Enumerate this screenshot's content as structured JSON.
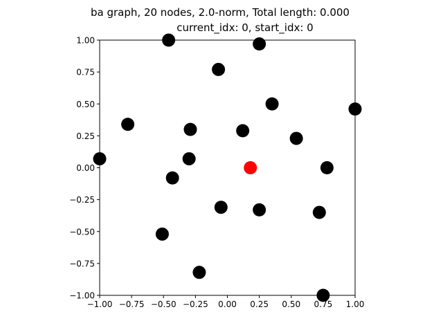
{
  "chart_data": {
    "type": "scatter",
    "title_line1": "ba graph, 20 nodes, 2.0-norm, Total length: 0.000",
    "title_line2": "current_idx: 0, start_idx: 0",
    "xlabel": "",
    "ylabel": "",
    "xlim": [
      -1.0,
      1.0
    ],
    "ylim": [
      -1.0,
      1.0
    ],
    "x_ticks": [
      -1.0,
      -0.75,
      -0.5,
      -0.25,
      0.0,
      0.25,
      0.5,
      0.75,
      1.0
    ],
    "y_ticks": [
      -1.0,
      -0.75,
      -0.5,
      -0.25,
      0.0,
      0.25,
      0.5,
      0.75,
      1.0
    ],
    "x_tick_labels": [
      "−1.00",
      "−0.75",
      "−0.50",
      "−0.25",
      "0.00",
      "0.25",
      "0.50",
      "0.75",
      "1.00"
    ],
    "y_tick_labels": [
      "−1.00",
      "−0.75",
      "−0.50",
      "−0.25",
      "0.00",
      "0.25",
      "0.50",
      "0.75",
      "1.00"
    ],
    "grid": false,
    "node_color": "#000000",
    "current_node_color": "#ff0000",
    "current_node": {
      "x": 0.18,
      "y": 0.0
    },
    "nodes": [
      {
        "x": -0.46,
        "y": 1.0
      },
      {
        "x": 0.25,
        "y": 0.97
      },
      {
        "x": -0.07,
        "y": 0.77
      },
      {
        "x": 0.35,
        "y": 0.5
      },
      {
        "x": 1.0,
        "y": 0.46
      },
      {
        "x": -0.78,
        "y": 0.34
      },
      {
        "x": -0.29,
        "y": 0.3
      },
      {
        "x": 0.12,
        "y": 0.29
      },
      {
        "x": 0.54,
        "y": 0.23
      },
      {
        "x": -1.0,
        "y": 0.07
      },
      {
        "x": -0.3,
        "y": 0.07
      },
      {
        "x": 0.78,
        "y": 0.0
      },
      {
        "x": -0.43,
        "y": -0.08
      },
      {
        "x": -0.05,
        "y": -0.31
      },
      {
        "x": 0.25,
        "y": -0.33
      },
      {
        "x": 0.72,
        "y": -0.35
      },
      {
        "x": -0.51,
        "y": -0.52
      },
      {
        "x": -0.22,
        "y": -0.82
      },
      {
        "x": 0.75,
        "y": -1.0
      }
    ]
  }
}
